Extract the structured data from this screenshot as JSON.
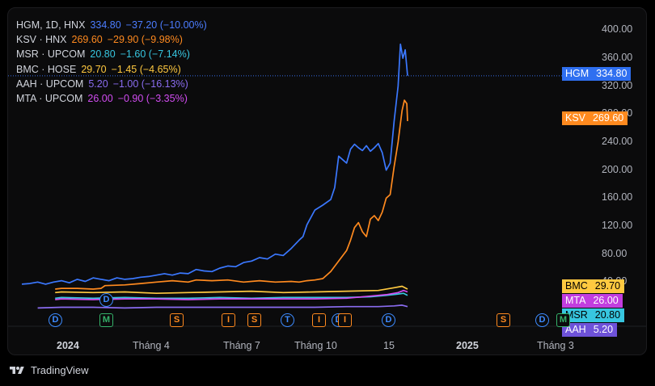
{
  "brand": {
    "name": "TradingView"
  },
  "legend": [
    {
      "symbol": "HGM, 1D, HNX",
      "value": "334.80",
      "change": "−37.20 (−10.00%)",
      "color": "#4c7dff"
    },
    {
      "symbol": "KSV · HNX",
      "value": "269.60",
      "change": "−29.90 (−9.98%)",
      "color": "#ff8a1f"
    },
    {
      "symbol": "MSR · UPCOM",
      "value": "20.80",
      "change": "−1.60 (−7.14%)",
      "color": "#37c6e0"
    },
    {
      "symbol": "BMC · HOSE",
      "value": "29.70",
      "change": "−1.45 (−4.65%)",
      "color": "#ffc940"
    },
    {
      "symbol": "AAH · UPCOM",
      "value": "5.20",
      "change": "−1.00 (−16.13%)",
      "color": "#8a6cf0"
    },
    {
      "symbol": "MTA · UPCOM",
      "value": "26.00",
      "change": "−0.90 (−3.35%)",
      "color": "#d24cf2"
    }
  ],
  "price_tags": [
    {
      "name": "HGM",
      "price": "334.80",
      "bg": "#2f6ff0",
      "fg": "#ffffff",
      "value": 334.8
    },
    {
      "name": "KSV",
      "price": "269.60",
      "bg": "#ff8a1f",
      "fg": "#ffffff",
      "value": 269.6
    },
    {
      "name": "BMC",
      "price": "29.70",
      "bg": "#ffc940",
      "fg": "#000000",
      "value": 29.7
    },
    {
      "name": "MTA",
      "price": "26.00",
      "bg": "#c23ddf",
      "fg": "#ffffff",
      "value": 26.0
    },
    {
      "name": "MSR",
      "price": "20.80",
      "bg": "#37c6e0",
      "fg": "#000000",
      "value": 20.8
    },
    {
      "name": "AAH",
      "price": "5.20",
      "bg": "#6e52d9",
      "fg": "#ffffff",
      "value": 5.2
    }
  ],
  "events": [
    {
      "label": "D",
      "shape": "circle",
      "color": "#3d8bff"
    },
    {
      "label": "M",
      "shape": "square",
      "color": "#35b36a"
    },
    {
      "label": "D",
      "shape": "circle",
      "color": "#3d8bff"
    },
    {
      "label": "S",
      "shape": "square",
      "color": "#ff8a1f"
    },
    {
      "label": "I",
      "shape": "square",
      "color": "#ff8a1f"
    },
    {
      "label": "S",
      "shape": "square",
      "color": "#ff8a1f"
    },
    {
      "label": "T",
      "shape": "circle",
      "color": "#3d8bff"
    },
    {
      "label": "I",
      "shape": "square",
      "color": "#ff8a1f"
    },
    {
      "label": "D",
      "shape": "circle",
      "color": "#3d8bff"
    },
    {
      "label": "I",
      "shape": "square",
      "color": "#ff8a1f"
    },
    {
      "label": "D",
      "shape": "circle",
      "color": "#3d8bff"
    },
    {
      "label": "S",
      "shape": "square",
      "color": "#ff8a1f"
    },
    {
      "label": "D",
      "shape": "circle",
      "color": "#3d8bff"
    },
    {
      "label": "M",
      "shape": "square",
      "color": "#35b36a"
    }
  ],
  "chart_data": {
    "type": "line",
    "title": "HGM, 1D, HNX",
    "xlabel": "",
    "ylabel": "",
    "x_tick_labels": [
      {
        "label": "2024",
        "bold": true,
        "day": 0
      },
      {
        "label": "Tháng 4",
        "bold": false,
        "day": 90
      },
      {
        "label": "Tháng 7",
        "bold": false,
        "day": 181
      },
      {
        "label": "Tháng 10",
        "bold": false,
        "day": 273
      },
      {
        "label": "15",
        "bold": false,
        "day": 318
      },
      {
        "label": "2025",
        "bold": true,
        "day": 366
      },
      {
        "label": "Tháng 3",
        "bold": false,
        "day": 425
      }
    ],
    "y_tick_labels": [
      "400.00",
      "360.00",
      "320.00",
      "280.00",
      "240.00",
      "200.00",
      "160.00",
      "120.00",
      "80.00",
      "40.00"
    ],
    "ylim": [
      0,
      412
    ],
    "xlim": [
      -50,
      438
    ],
    "last_price_line": 334.8,
    "grid": false,
    "series": [
      {
        "name": "HGM",
        "color": "#3b78ff",
        "points": [
          [
            -50,
            37
          ],
          [
            -40,
            38
          ],
          [
            -30,
            40
          ],
          [
            -20,
            37
          ],
          [
            -10,
            40
          ],
          [
            0,
            42
          ],
          [
            10,
            39
          ],
          [
            20,
            44
          ],
          [
            30,
            41
          ],
          [
            40,
            46
          ],
          [
            50,
            44
          ],
          [
            60,
            42
          ],
          [
            70,
            46
          ],
          [
            80,
            44
          ],
          [
            90,
            45
          ],
          [
            100,
            47
          ],
          [
            110,
            48
          ],
          [
            120,
            50
          ],
          [
            130,
            52
          ],
          [
            140,
            50
          ],
          [
            150,
            53
          ],
          [
            160,
            52
          ],
          [
            170,
            58
          ],
          [
            180,
            56
          ],
          [
            190,
            55
          ],
          [
            200,
            60
          ],
          [
            210,
            63
          ],
          [
            220,
            62
          ],
          [
            230,
            68
          ],
          [
            240,
            70
          ],
          [
            250,
            75
          ],
          [
            260,
            73
          ],
          [
            270,
            80
          ],
          [
            280,
            78
          ],
          [
            290,
            88
          ],
          [
            300,
            100
          ],
          [
            305,
            105
          ],
          [
            310,
            122
          ],
          [
            320,
            143
          ],
          [
            330,
            150
          ],
          [
            340,
            158
          ],
          [
            345,
            175
          ],
          [
            350,
            220
          ],
          [
            355,
            215
          ],
          [
            360,
            210
          ],
          [
            365,
            230
          ],
          [
            370,
            237
          ],
          [
            375,
            232
          ],
          [
            380,
            228
          ],
          [
            385,
            235
          ],
          [
            390,
            227
          ],
          [
            395,
            232
          ],
          [
            400,
            238
          ],
          [
            405,
            225
          ],
          [
            410,
            200
          ],
          [
            415,
            210
          ],
          [
            420,
            270
          ],
          [
            425,
            320
          ],
          [
            428,
            380
          ],
          [
            431,
            360
          ],
          [
            434,
            372
          ],
          [
            437,
            335
          ]
        ]
      },
      {
        "name": "KSV",
        "color": "#ff8a1f",
        "points": [
          [
            -8,
            30
          ],
          [
            0,
            31
          ],
          [
            20,
            31
          ],
          [
            40,
            30
          ],
          [
            50,
            31
          ],
          [
            55,
            35
          ],
          [
            80,
            36
          ],
          [
            100,
            38
          ],
          [
            120,
            40
          ],
          [
            140,
            42
          ],
          [
            160,
            40
          ],
          [
            170,
            43
          ],
          [
            190,
            42
          ],
          [
            210,
            43
          ],
          [
            230,
            40
          ],
          [
            250,
            42
          ],
          [
            270,
            40
          ],
          [
            290,
            41
          ],
          [
            300,
            40
          ],
          [
            310,
            42
          ],
          [
            320,
            43
          ],
          [
            330,
            45
          ],
          [
            340,
            55
          ],
          [
            350,
            70
          ],
          [
            360,
            85
          ],
          [
            365,
            100
          ],
          [
            370,
            118
          ],
          [
            375,
            125
          ],
          [
            380,
            112
          ],
          [
            385,
            105
          ],
          [
            390,
            130
          ],
          [
            395,
            135
          ],
          [
            400,
            128
          ],
          [
            405,
            140
          ],
          [
            410,
            160
          ],
          [
            415,
            165
          ],
          [
            420,
            205
          ],
          [
            425,
            240
          ],
          [
            430,
            285
          ],
          [
            433,
            300
          ],
          [
            436,
            295
          ],
          [
            437,
            270
          ]
        ]
      },
      {
        "name": "BMC",
        "color": "#ffc940",
        "points": [
          [
            -8,
            25
          ],
          [
            0,
            26
          ],
          [
            40,
            25
          ],
          [
            80,
            26
          ],
          [
            120,
            24
          ],
          [
            160,
            25
          ],
          [
            200,
            26
          ],
          [
            240,
            27
          ],
          [
            280,
            25
          ],
          [
            320,
            26
          ],
          [
            360,
            27
          ],
          [
            400,
            28
          ],
          [
            420,
            32
          ],
          [
            430,
            34
          ],
          [
            437,
            30
          ]
        ]
      },
      {
        "name": "MTA",
        "color": "#d24cf2",
        "points": [
          [
            -8,
            15
          ],
          [
            0,
            16
          ],
          [
            40,
            15
          ],
          [
            80,
            16
          ],
          [
            120,
            16
          ],
          [
            160,
            15
          ],
          [
            200,
            16
          ],
          [
            240,
            16
          ],
          [
            280,
            16
          ],
          [
            320,
            16
          ],
          [
            360,
            17
          ],
          [
            390,
            20
          ],
          [
            410,
            22
          ],
          [
            425,
            25
          ],
          [
            432,
            28
          ],
          [
            437,
            26
          ]
        ]
      },
      {
        "name": "MSR",
        "color": "#37c6e0",
        "points": [
          [
            -8,
            17
          ],
          [
            0,
            18
          ],
          [
            40,
            17
          ],
          [
            80,
            18
          ],
          [
            120,
            17
          ],
          [
            160,
            17
          ],
          [
            200,
            18
          ],
          [
            240,
            17
          ],
          [
            280,
            18
          ],
          [
            320,
            18
          ],
          [
            360,
            18
          ],
          [
            390,
            19
          ],
          [
            410,
            21
          ],
          [
            425,
            23
          ],
          [
            432,
            24
          ],
          [
            437,
            21
          ]
        ]
      },
      {
        "name": "AAH",
        "color": "#8a6cf0",
        "points": [
          [
            -30,
            3
          ],
          [
            0,
            4
          ],
          [
            40,
            4
          ],
          [
            80,
            3
          ],
          [
            120,
            4
          ],
          [
            160,
            4
          ],
          [
            200,
            4
          ],
          [
            240,
            4
          ],
          [
            280,
            4
          ],
          [
            320,
            4
          ],
          [
            360,
            5
          ],
          [
            400,
            5
          ],
          [
            420,
            6
          ],
          [
            430,
            7
          ],
          [
            437,
            5
          ]
        ]
      }
    ]
  }
}
